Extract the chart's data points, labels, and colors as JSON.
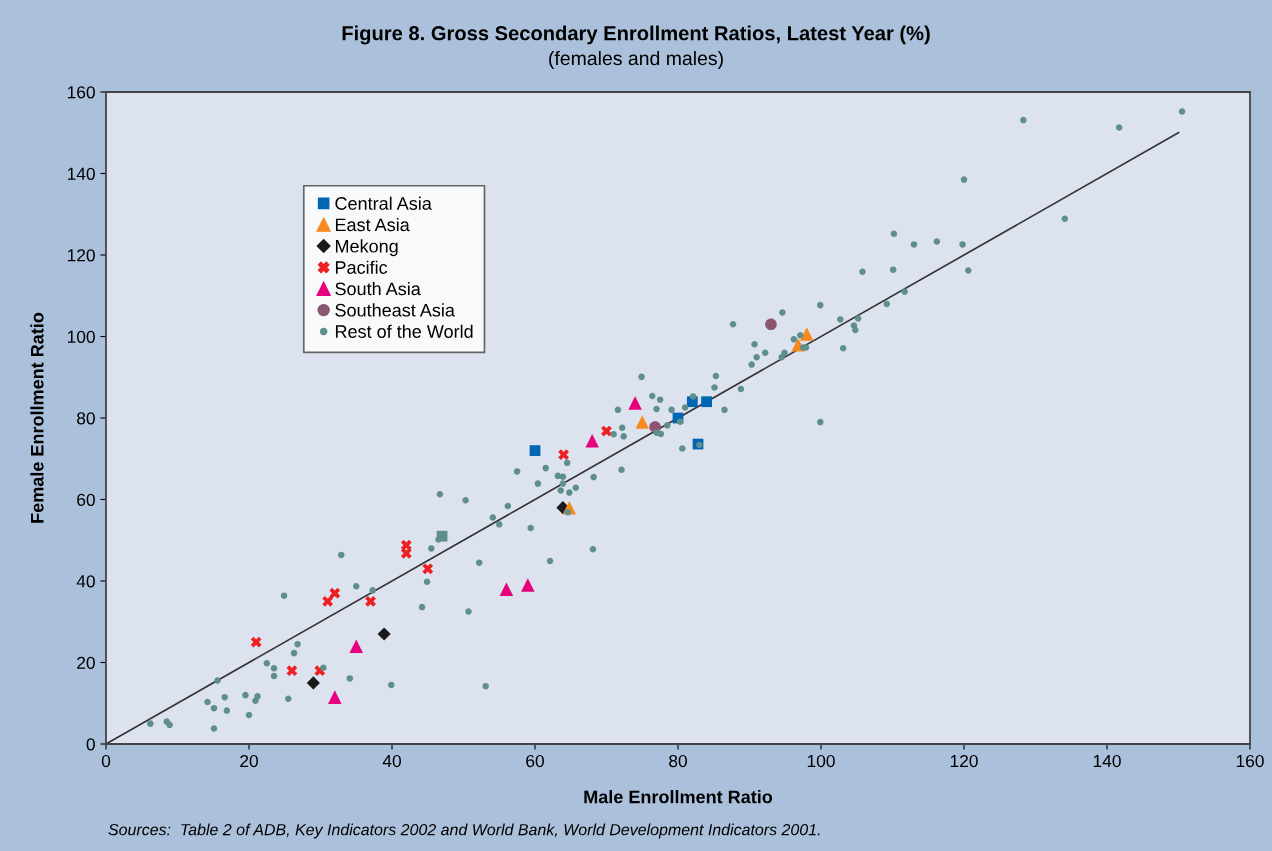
{
  "chart_data": {
    "type": "scatter",
    "title": "Figure 8. Gross Secondary Enrollment Ratios, Latest Year (%)",
    "subtitle": "(females and males)",
    "xlabel": "Male Enrollment Ratio",
    "ylabel": "Female Enrollment Ratio",
    "annotations": [
      "Sources:  Table 2 of ADB, Key Indicators 2002 and World Bank, World Development Indicators 2001."
    ],
    "xlim": [
      0,
      160
    ],
    "ylim": [
      0,
      160
    ],
    "xticks": [
      0,
      20,
      40,
      60,
      80,
      100,
      120,
      140,
      160
    ],
    "yticks": [
      0,
      20,
      40,
      60,
      80,
      100,
      120,
      140,
      160
    ],
    "grid": false,
    "legend": "top left",
    "series": [
      {
        "type": "line",
        "color": "#333333",
        "marker": "none",
        "line_style": "solid",
        "x": [
          0,
          150
        ],
        "values": [
          0,
          150
        ]
      },
      {
        "name": "Central Asia",
        "color": "#0066b3",
        "marker": "square",
        "colors": [
          "#0066b3",
          "#0066b3",
          "#0066b3",
          "#0066b3",
          "#0066b3",
          "#5f8f8c"
        ],
        "x": [
          60,
          80,
          82,
          84,
          82.8,
          47
        ],
        "values": [
          72,
          80,
          84,
          84,
          73.6,
          51
        ]
      },
      {
        "name": "East Asia",
        "color": "#f7891f",
        "marker": "triangle",
        "x": [
          64.8,
          75,
          96.8,
          98
        ],
        "values": [
          58,
          79,
          98,
          100.6
        ]
      },
      {
        "name": "Mekong",
        "color": "#1a1a1a",
        "marker": "diamond",
        "x": [
          29,
          38.9,
          63.9
        ],
        "values": [
          15,
          27,
          58
        ]
      },
      {
        "name": "Pacific",
        "color": "#ee2024",
        "marker": "cross",
        "x": [
          21,
          26,
          29.9,
          31,
          32,
          37,
          42,
          42,
          45,
          64,
          70
        ],
        "values": [
          25,
          18,
          18,
          35,
          37,
          35,
          48.8,
          46.8,
          43,
          71,
          76.8
        ]
      },
      {
        "name": "South Asia",
        "color": "#e6007e",
        "marker": "triangle",
        "x": [
          32,
          35,
          56,
          59,
          68,
          74
        ],
        "values": [
          11.5,
          24,
          38,
          39,
          74.4,
          83.7
        ]
      },
      {
        "name": "Southeast Asia",
        "color": "#8b5570",
        "marker": "circle",
        "x": [
          76.8,
          93
        ],
        "values": [
          77.8,
          103
        ]
      },
      {
        "name": "Rest of the World",
        "color": "#5f8f8c",
        "marker": "circle",
        "x": [
          6.2,
          8.5,
          8.9,
          14.2,
          15.1,
          15.1,
          15.6,
          16.6,
          16.9,
          19.5,
          20,
          21.2,
          20.9,
          22.5,
          23.5,
          23.5,
          24.9,
          25.5,
          26.3,
          26.8,
          30.4,
          32.9,
          35,
          37.3,
          34.1,
          39.9,
          44.2,
          44.9,
          45.5,
          46.5,
          46.7,
          50.3,
          50.7,
          52.2,
          53.1,
          54.1,
          55,
          56.2,
          59.4,
          62.1,
          57.5,
          61.5,
          60.4,
          63.2,
          63.9,
          63.9,
          63.6,
          64.8,
          65.7,
          64.5,
          64.6,
          68.2,
          68.1,
          72.1,
          71,
          71.6,
          72.2,
          72.4,
          74.9,
          76.4,
          77.5,
          77,
          79.1,
          81,
          80.3,
          78.5,
          77,
          77.6,
          83,
          80.6,
          82.1,
          85.3,
          85.1,
          86.5,
          88.8,
          87.7,
          90.7,
          91,
          92.2,
          90.3,
          94.5,
          94.9,
          96.2,
          97.1,
          97.5,
          97.9,
          94.6,
          99.9,
          99.9,
          102.7,
          103.1,
          104.6,
          104.8,
          105.2,
          105.8,
          109.2,
          110.1,
          111.7,
          110.2,
          113,
          116.2,
          119.8,
          120.6,
          120,
          128.3,
          134.1,
          141.7,
          150.5
        ],
        "values": [
          5,
          5.5,
          4.7,
          10.3,
          8.8,
          3.8,
          15.6,
          11.5,
          8.2,
          12,
          7.1,
          11.7,
          10.6,
          19.8,
          18.6,
          16.7,
          36.4,
          11.1,
          22.3,
          24.5,
          18.7,
          46.4,
          38.7,
          37.7,
          16.1,
          14.5,
          33.6,
          39.8,
          48,
          50.2,
          61.3,
          59.8,
          32.5,
          44.5,
          14.2,
          55.6,
          53.9,
          58.4,
          53,
          44.9,
          66.9,
          67.7,
          63.9,
          65.8,
          65.6,
          63.9,
          62.2,
          61.7,
          62.9,
          69,
          56.9,
          65.5,
          47.8,
          67.3,
          76,
          82,
          77.6,
          75.5,
          90.1,
          85.4,
          84.5,
          82.2,
          82,
          82.6,
          79.1,
          78.2,
          76.4,
          76.1,
          73.4,
          72.5,
          85.3,
          90.3,
          87.5,
          82,
          87.1,
          103,
          98.1,
          94.9,
          96,
          93.1,
          94.9,
          96,
          99.3,
          100.3,
          97.3,
          97.3,
          105.9,
          107.7,
          79,
          104.2,
          97.1,
          102.7,
          101.6,
          104.4,
          115.9,
          108,
          116.4,
          111,
          125.2,
          122.6,
          123.3,
          122.6,
          116.2,
          138.5,
          153.1,
          128.9,
          151.3,
          155.2
        ]
      }
    ]
  }
}
